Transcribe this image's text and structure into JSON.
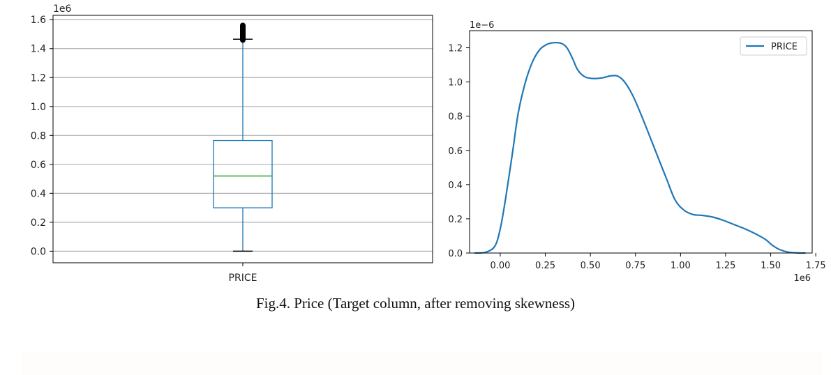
{
  "caption": "Fig.4. Price (Target column, after removing skewness)",
  "chart_data": [
    {
      "type": "box",
      "series_name": "PRICE",
      "category_label": "PRICE",
      "offset_text": "1e6",
      "ylim": [
        -0.08,
        1.63
      ],
      "yticks": [
        "0.0",
        "0.2",
        "0.4",
        "0.6",
        "0.8",
        "1.0",
        "1.2",
        "1.4",
        "1.6"
      ],
      "grid": true,
      "whisker_low": 0.0,
      "q1": 0.3,
      "median": 0.52,
      "q3": 0.765,
      "whisker_high": 1.465,
      "outlier_range": [
        1.45,
        1.57
      ],
      "colors": {
        "box": "#1f77b4",
        "median": "#2ca02c",
        "whisker_caps": "#000000",
        "outliers": "#000000",
        "grid": "#b0b0b0"
      }
    },
    {
      "type": "line",
      "subtype": "kde",
      "offset_text_y": "1e−6",
      "offset_text_x": "1e6",
      "xlim": [
        -0.17,
        1.73
      ],
      "ylim": [
        0,
        1.3
      ],
      "xticks": [
        "0.00",
        "0.25",
        "0.50",
        "0.75",
        "1.00",
        "1.25",
        "1.50",
        "1.75"
      ],
      "yticks": [
        "0.0",
        "0.2",
        "0.4",
        "0.6",
        "0.8",
        "1.0",
        "1.2"
      ],
      "grid": false,
      "legend": {
        "position": "upper right",
        "entries": [
          "PRICE"
        ]
      },
      "series": [
        {
          "name": "PRICE",
          "color": "#1f77b4",
          "x": [
            -0.14,
            -0.08,
            -0.03,
            0.0,
            0.03,
            0.07,
            0.1,
            0.14,
            0.18,
            0.22,
            0.26,
            0.3,
            0.34,
            0.37,
            0.4,
            0.43,
            0.47,
            0.52,
            0.57,
            0.61,
            0.65,
            0.69,
            0.74,
            0.8,
            0.86,
            0.92,
            0.97,
            1.02,
            1.07,
            1.12,
            1.18,
            1.24,
            1.3,
            1.36,
            1.42,
            1.47,
            1.51,
            1.55,
            1.6,
            1.66,
            1.69
          ],
          "y": [
            0.0,
            0.005,
            0.04,
            0.14,
            0.32,
            0.6,
            0.82,
            1.0,
            1.12,
            1.19,
            1.22,
            1.23,
            1.225,
            1.2,
            1.14,
            1.07,
            1.03,
            1.02,
            1.025,
            1.035,
            1.035,
            1.0,
            0.91,
            0.76,
            0.6,
            0.44,
            0.31,
            0.25,
            0.225,
            0.22,
            0.21,
            0.19,
            0.165,
            0.14,
            0.11,
            0.08,
            0.045,
            0.02,
            0.005,
            0.0,
            0.0
          ]
        }
      ]
    }
  ]
}
